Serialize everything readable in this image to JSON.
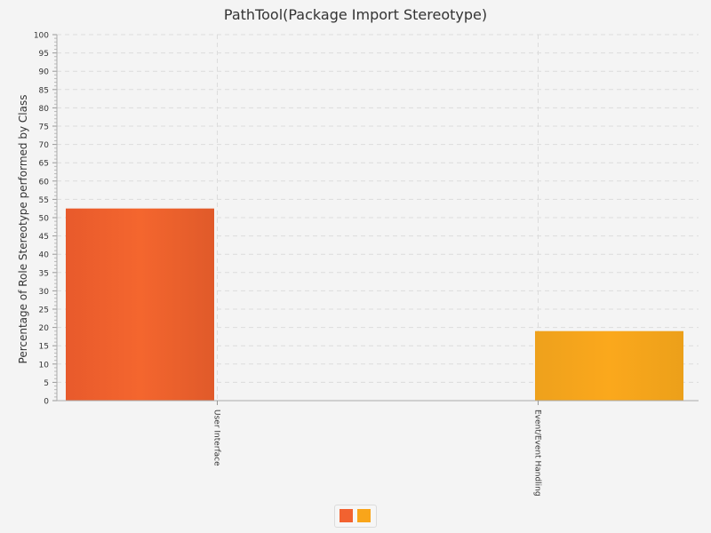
{
  "chart_data": {
    "type": "bar",
    "title": "PathTool(Package Import Stereotype)",
    "ylabel": "Percentage of Role Stereotype performed by Class",
    "xlabel": "",
    "ylim": [
      0,
      100
    ],
    "ytick_step": 5,
    "categories": [
      "User Interface",
      "Event/Event Handling"
    ],
    "series": [
      {
        "color": "#f26230",
        "values": [
          52.5,
          null
        ]
      },
      {
        "color": "#f9a51a",
        "values": [
          null,
          19
        ]
      }
    ],
    "grid": true,
    "legend": "bottom-center"
  }
}
